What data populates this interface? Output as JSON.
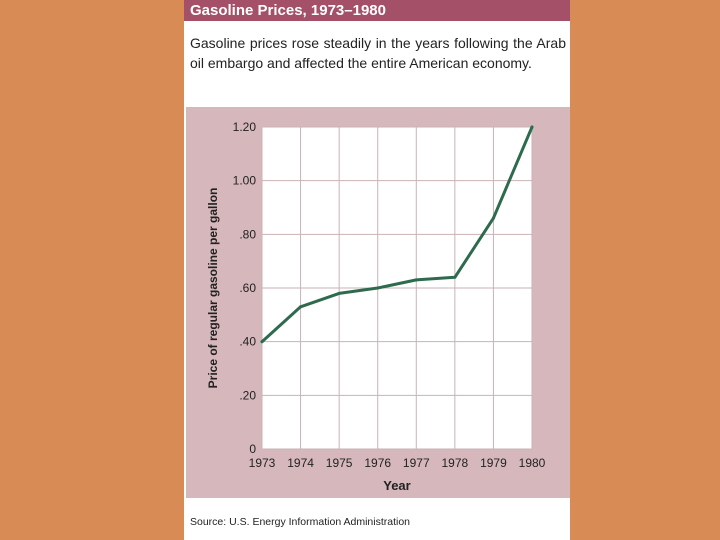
{
  "title": "Gasoline Prices, 1973–1980",
  "caption": "Gasoline prices rose steadily in the years following the Arab oil embargo and affected the entire American economy.",
  "source": "Source: U.S. Energy Information Administration",
  "colors": {
    "background": "#D98B55",
    "title_bar": "#A45068",
    "chart_panel": "#D6B8BC",
    "line": "#2E6B4E"
  },
  "chart_data": {
    "type": "line",
    "x": [
      1973,
      1974,
      1975,
      1976,
      1977,
      1978,
      1979,
      1980
    ],
    "y": [
      0.4,
      0.53,
      0.58,
      0.6,
      0.63,
      0.64,
      0.86,
      1.2
    ],
    "xlabel": "Year",
    "ylabel": "Price of regular gasoline per gallon",
    "x_tick_labels": [
      "1973",
      "1974",
      "1975",
      "1976",
      "1977",
      "1978",
      "1979",
      "1980"
    ],
    "y_ticks": [
      0,
      0.2,
      0.4,
      0.6,
      0.8,
      1.0,
      1.2
    ],
    "y_tick_labels": [
      "0",
      ".20",
      ".40",
      ".60",
      ".80",
      "1.00",
      "1.20"
    ],
    "xlim": [
      1973,
      1980
    ],
    "ylim": [
      0,
      1.2
    ],
    "grid": true,
    "legend": "none"
  }
}
